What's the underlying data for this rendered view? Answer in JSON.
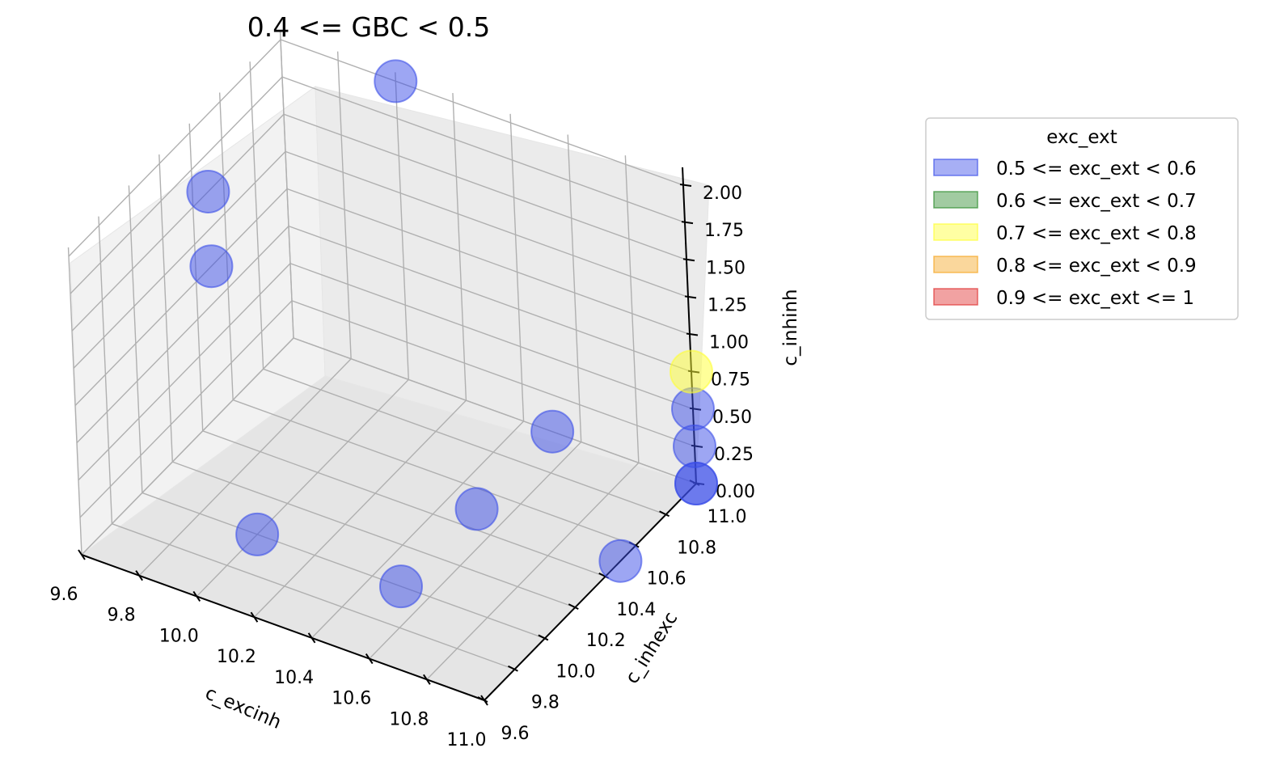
{
  "chart_data": {
    "type": "scatter",
    "title": "0.4 <= GBC < 0.5",
    "xlabel": "c_excinh",
    "ylabel": "c_inhexc",
    "zlabel": "c_inhinh",
    "x_ticks": [
      "9.6",
      "9.8",
      "10.0",
      "10.2",
      "10.4",
      "10.6",
      "10.8",
      "11.0"
    ],
    "y_ticks": [
      "9.6",
      "9.8",
      "10.0",
      "10.2",
      "10.4",
      "10.6",
      "10.8",
      "11.0"
    ],
    "z_ticks": [
      "0.00",
      "0.25",
      "0.50",
      "0.75",
      "1.00",
      "1.25",
      "1.50",
      "1.75",
      "2.00"
    ],
    "xlim": [
      9.6,
      11.0
    ],
    "ylim": [
      9.6,
      11.0
    ],
    "zlim": [
      0.0,
      2.0
    ],
    "grid": true,
    "legend": {
      "title": "exc_ext",
      "placement": "right",
      "entries": [
        {
          "label": "0.5 <= exc_ext < 0.6",
          "color": "#3b4ee8"
        },
        {
          "label": "0.6 <= exc_ext < 0.7",
          "color": "#2e8b2e"
        },
        {
          "label": "0.7 <= exc_ext < 0.8",
          "color": "#ffff33"
        },
        {
          "label": "0.8 <= exc_ext < 0.9",
          "color": "#f5a623"
        },
        {
          "label": "0.9 <= exc_ext <= 1",
          "color": "#e03030"
        }
      ]
    },
    "points": [
      {
        "x": 10.0,
        "y": 10.0,
        "z": 0.0,
        "category": 0
      },
      {
        "x": 10.5,
        "y": 10.0,
        "z": 0.0,
        "category": 0
      },
      {
        "x": 10.5,
        "y": 10.5,
        "z": 0.0,
        "category": 0
      },
      {
        "x": 11.0,
        "y": 10.5,
        "z": 0.0,
        "category": 0
      },
      {
        "x": 11.0,
        "y": 11.0,
        "z": 0.0,
        "category": 0
      },
      {
        "x": 11.0,
        "y": 11.0,
        "z": 0.0,
        "category": 0
      },
      {
        "x": 11.0,
        "y": 11.0,
        "z": 0.25,
        "category": 0
      },
      {
        "x": 11.0,
        "y": 11.0,
        "z": 0.5,
        "category": 0
      },
      {
        "x": 11.0,
        "y": 11.0,
        "z": 0.75,
        "category": 2
      },
      {
        "x": 10.5,
        "y": 11.0,
        "z": 0.0,
        "category": 0
      },
      {
        "x": 9.6,
        "y": 10.5,
        "z": 1.0,
        "category": 0
      },
      {
        "x": 9.6,
        "y": 10.5,
        "z": 1.5,
        "category": 0
      },
      {
        "x": 10.0,
        "y": 11.0,
        "z": 2.0,
        "category": 0
      }
    ]
  }
}
